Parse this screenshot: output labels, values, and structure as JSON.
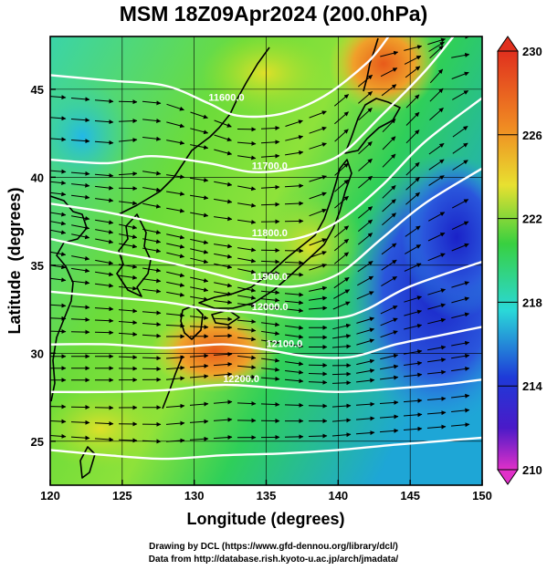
{
  "title": "MSM 18Z09Apr2024 (200.0hPa)",
  "xlabel": "Longitude (degrees)",
  "ylabel": "Latitude  (degrees)",
  "x_ticks": [
    "120",
    "125",
    "130",
    "135",
    "140",
    "145",
    "150"
  ],
  "y_ticks": [
    "25",
    "30",
    "35",
    "40",
    "45"
  ],
  "colorbar_ticks": [
    "230",
    "226",
    "222",
    "218",
    "214",
    "210"
  ],
  "contour_labels": [
    "11600.0",
    "11700.0",
    "11800.0",
    "11900.0",
    "12000.0",
    "12100.0",
    "12200.0"
  ],
  "credits": {
    "line1": "Drawing by DCL (https://www.gfd-dennou.org/library/dcl/)",
    "line2": "Data from http://database.rish.kyoto-u.ac.jp/arch/jmadata/"
  },
  "colors": {
    "cold": "#1a2ad8",
    "cool": "#20c8e8",
    "mid": "#35d040",
    "warm": "#d8e830",
    "hot": "#e04820"
  },
  "chart_data": {
    "type": "map",
    "xlim": [
      120,
      150
    ],
    "ylim": [
      22.5,
      48
    ],
    "colorbar_range": [
      210,
      230
    ],
    "contours": [
      {
        "label": "11600.0",
        "pts": [
          [
            120,
            45.8
          ],
          [
            124,
            45.5
          ],
          [
            128,
            45.2
          ],
          [
            131,
            44.2
          ],
          [
            133,
            43.5
          ],
          [
            136,
            43.6
          ],
          [
            139,
            44.6
          ],
          [
            142,
            46.5
          ],
          [
            143.5,
            48
          ]
        ]
      },
      {
        "label": "11700.0",
        "pts": [
          [
            120,
            41
          ],
          [
            124,
            40.8
          ],
          [
            127,
            41.2
          ],
          [
            131,
            40.8
          ],
          [
            134,
            40.3
          ],
          [
            137,
            40.5
          ],
          [
            140,
            41.2
          ],
          [
            143,
            43.5
          ],
          [
            146,
            46
          ],
          [
            148,
            48
          ]
        ]
      },
      {
        "label": "11800.0",
        "pts": [
          [
            120,
            38.5
          ],
          [
            124,
            38
          ],
          [
            128,
            37.3
          ],
          [
            131,
            36.8
          ],
          [
            134,
            36.5
          ],
          [
            137,
            36.5
          ],
          [
            140,
            37.5
          ],
          [
            143,
            39.5
          ],
          [
            146,
            42
          ],
          [
            150,
            44.5
          ]
        ]
      },
      {
        "label": "11900.0",
        "pts": [
          [
            120,
            36.5
          ],
          [
            124,
            35.8
          ],
          [
            128,
            35.2
          ],
          [
            131,
            34.6
          ],
          [
            134,
            34
          ],
          [
            137,
            33.8
          ],
          [
            140,
            34.5
          ],
          [
            143,
            36.5
          ],
          [
            146,
            38.5
          ],
          [
            150,
            40.5
          ]
        ]
      },
      {
        "label": "12000.0",
        "pts": [
          [
            120,
            33.5
          ],
          [
            124,
            33.2
          ],
          [
            128,
            32.9
          ],
          [
            131,
            32.5
          ],
          [
            134,
            32.3
          ],
          [
            137,
            32
          ],
          [
            140,
            32
          ],
          [
            142,
            32.5
          ],
          [
            145,
            33.8
          ],
          [
            150,
            35.2
          ]
        ]
      },
      {
        "label": "12100.0",
        "pts": [
          [
            120,
            30.5
          ],
          [
            124,
            30.5
          ],
          [
            128,
            30.3
          ],
          [
            132,
            30.5
          ],
          [
            135,
            30.2
          ],
          [
            138,
            29.8
          ],
          [
            141,
            29.8
          ],
          [
            144,
            30.5
          ],
          [
            147,
            31
          ],
          [
            150,
            31.5
          ]
        ]
      },
      {
        "label": "12200.0",
        "pts": [
          [
            120,
            27.8
          ],
          [
            124,
            27.8
          ],
          [
            128,
            27.9
          ],
          [
            132,
            28.2
          ],
          [
            136,
            28
          ],
          [
            140,
            27.8
          ],
          [
            144,
            28
          ],
          [
            147,
            28.2
          ],
          [
            150,
            28.5
          ]
        ]
      },
      {
        "label": "",
        "pts": [
          [
            120,
            24.5
          ],
          [
            124,
            24.2
          ],
          [
            128,
            24
          ],
          [
            132,
            24.2
          ],
          [
            136,
            24.3
          ],
          [
            140,
            24.5
          ],
          [
            144,
            24.8
          ],
          [
            147,
            25
          ],
          [
            150,
            25.2
          ]
        ]
      }
    ],
    "wind": "westerly flow, curving north-east over Japan"
  }
}
